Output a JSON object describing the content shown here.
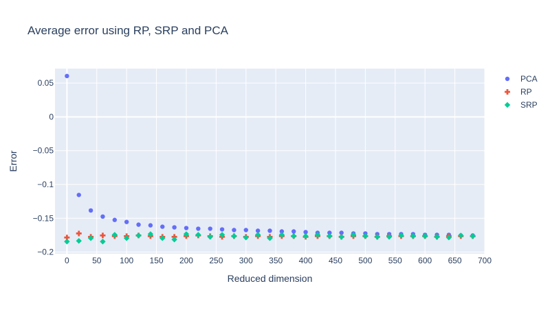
{
  "chart_data": {
    "type": "scatter",
    "title": "Average error using RP, SRP and PCA",
    "xlabel": "Reduced dimension",
    "ylabel": "Error",
    "xlim": [
      -20,
      700
    ],
    "ylim": [
      -0.2025,
      0.0715
    ],
    "x_ticks": [
      0,
      50,
      100,
      150,
      200,
      250,
      300,
      350,
      400,
      450,
      500,
      550,
      600,
      650,
      700
    ],
    "y_ticks": [
      0.05,
      0,
      -0.05,
      -0.1,
      -0.15,
      -0.2
    ],
    "y_tick_labels": [
      "0.05",
      "0",
      "−0.05",
      "−0.1",
      "−0.15",
      "−0.2"
    ],
    "grid": true,
    "legend_position": "top-right",
    "x": [
      0,
      20,
      40,
      60,
      80,
      100,
      120,
      140,
      160,
      180,
      200,
      220,
      240,
      260,
      280,
      300,
      320,
      340,
      360,
      380,
      400,
      420,
      440,
      460,
      480,
      500,
      520,
      540,
      560,
      580,
      600,
      620,
      640,
      660,
      680
    ],
    "series": [
      {
        "name": "PCA",
        "marker": "circle",
        "color": "#636efa",
        "values": [
          0.0605,
          -0.1155,
          -0.1385,
          -0.1475,
          -0.1525,
          -0.1555,
          -0.1595,
          -0.1605,
          -0.1625,
          -0.1635,
          -0.1645,
          -0.1655,
          -0.1655,
          -0.1665,
          -0.1675,
          -0.1675,
          -0.1685,
          -0.1685,
          -0.1695,
          -0.1695,
          -0.1705,
          -0.1715,
          -0.1715,
          -0.1715,
          -0.1725,
          -0.1725,
          -0.1735,
          -0.1735,
          -0.1735,
          -0.1735,
          -0.1745,
          -0.1745,
          -0.1745,
          -0.1755,
          -0.1755
        ]
      },
      {
        "name": "RP",
        "marker": "cross",
        "color": "#ef553b",
        "values": [
          -0.1785,
          -0.1725,
          -0.1775,
          -0.1755,
          -0.1765,
          -0.1765,
          -0.1755,
          -0.1765,
          -0.1775,
          -0.1775,
          -0.1765,
          -0.1755,
          -0.1765,
          -0.1775,
          -0.1765,
          -0.1775,
          -0.1765,
          -0.1775,
          -0.1765,
          -0.1765,
          -0.1775,
          -0.1765,
          -0.1765,
          -0.1775,
          -0.1765,
          -0.1765,
          -0.1775,
          -0.1765,
          -0.1765,
          -0.1765,
          -0.1765,
          -0.1775,
          -0.1765,
          -0.1765,
          -0.1765
        ]
      },
      {
        "name": "SRP",
        "marker": "diamond",
        "color": "#00cc96",
        "values": [
          -0.1845,
          -0.1835,
          -0.1795,
          -0.1845,
          -0.1745,
          -0.1795,
          -0.1755,
          -0.1735,
          -0.1795,
          -0.1815,
          -0.1735,
          -0.1745,
          -0.1775,
          -0.1745,
          -0.1765,
          -0.1785,
          -0.1745,
          -0.1795,
          -0.1745,
          -0.1765,
          -0.1765,
          -0.1745,
          -0.1765,
          -0.1775,
          -0.1745,
          -0.1765,
          -0.1775,
          -0.1775,
          -0.1755,
          -0.1765,
          -0.1765,
          -0.1775,
          -0.1785,
          -0.1755,
          -0.1765
        ]
      }
    ]
  }
}
